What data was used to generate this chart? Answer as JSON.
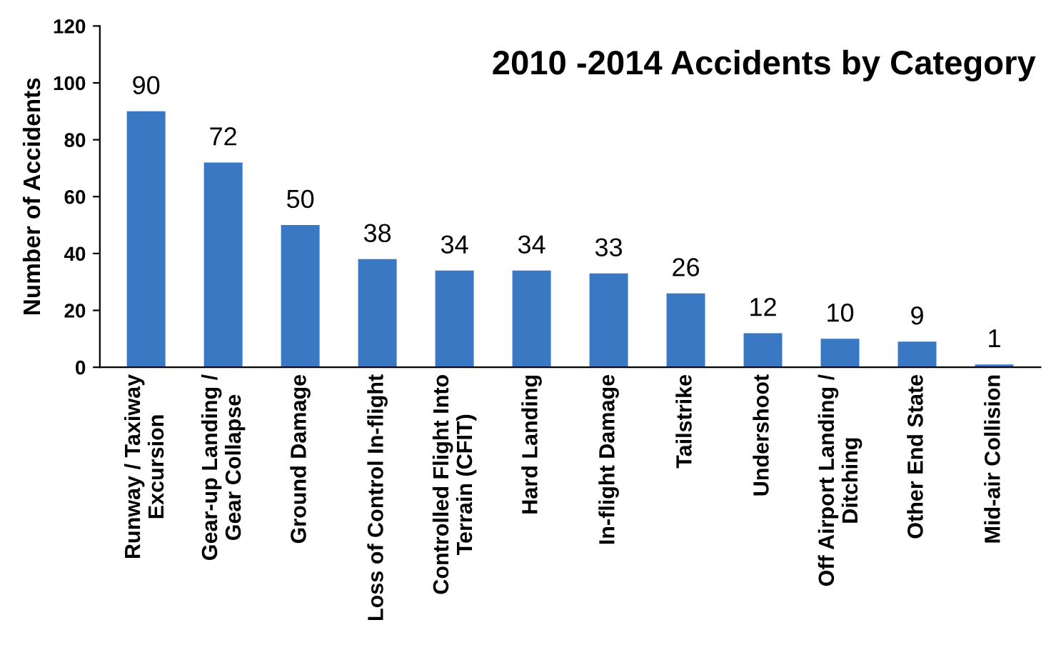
{
  "chart_data": {
    "type": "bar",
    "title": "2010 -2014 Accidents by Category",
    "ylabel": "Number of Accidents",
    "categories": [
      "Runway / Taxiway\nExcursion",
      "Gear-up Landing /\nGear Collapse",
      "Ground Damage",
      "Loss of Control In-flight",
      "Controlled Flight Into\nTerrain (CFIT)",
      "Hard Landing",
      "In-flight Damage",
      "Tailstrike",
      "Undershoot",
      "Off Airport Landing /\nDitching",
      "Other End State",
      "Mid-air Collision"
    ],
    "values": [
      90,
      72,
      50,
      38,
      34,
      34,
      33,
      26,
      12,
      10,
      9,
      1
    ],
    "color": "#3b78c3",
    "ylim": [
      0,
      120
    ],
    "yticks": [
      0,
      20,
      40,
      60,
      80,
      100,
      120
    ],
    "grid": false,
    "data_labels": true
  }
}
